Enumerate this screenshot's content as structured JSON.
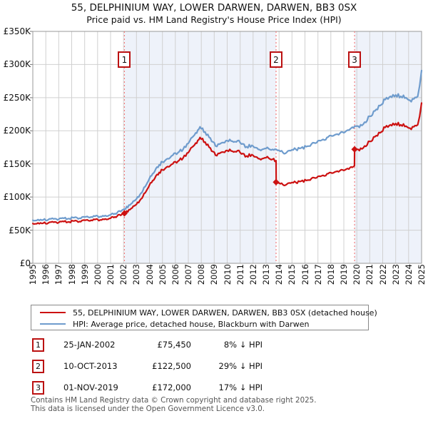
{
  "title": "55, DELPHINIUM WAY, LOWER DARWEN, DARWEN, BB3 0SX",
  "subtitle": "Price paid vs. HM Land Registry's House Price Index (HPI)",
  "footer": {
    "line1": "Contains HM Land Registry data © Crown copyright and database right 2025.",
    "line2": "This data is licensed under the Open Government Licence v3.0."
  },
  "chart_data": {
    "type": "line",
    "x_domain": [
      1995,
      2025
    ],
    "ylim_k": [
      0,
      350
    ],
    "x_ticks": [
      1995,
      1996,
      1997,
      1998,
      1999,
      2000,
      2001,
      2002,
      2003,
      2004,
      2005,
      2006,
      2007,
      2008,
      2009,
      2010,
      2011,
      2012,
      2013,
      2014,
      2015,
      2016,
      2017,
      2018,
      2019,
      2020,
      2021,
      2022,
      2023,
      2024,
      2025
    ],
    "y_ticks": [
      {
        "v": 0,
        "label": "£0"
      },
      {
        "v": 50,
        "label": "£50K"
      },
      {
        "v": 100,
        "label": "£100K"
      },
      {
        "v": 150,
        "label": "£150K"
      },
      {
        "v": 200,
        "label": "£200K"
      },
      {
        "v": 250,
        "label": "£250K"
      },
      {
        "v": 300,
        "label": "£300K"
      },
      {
        "v": 350,
        "label": "£350K"
      }
    ],
    "colors": {
      "property": "#cc1111",
      "hpi": "#6f9ccd",
      "band": "#eef2fa",
      "grid": "#d0d0d0",
      "border": "#999999",
      "sale_line": "#f37c7c",
      "sale_box_border": "#bb1111"
    },
    "bands": [
      [
        2002.07,
        2013.77
      ],
      [
        2019.83,
        2025
      ]
    ],
    "wiggle": {
      "base": 0.8,
      "scale": 0.009
    },
    "series": [
      {
        "name": "55, DELPHINIUM WAY, LOWER DARWEN, DARWEN, BB3 0SX (detached house)",
        "color_key": "property",
        "points": [
          [
            1995.0,
            60
          ],
          [
            1995.4,
            61
          ],
          [
            1995.8,
            60.5
          ],
          [
            1996.2,
            61
          ],
          [
            1996.6,
            62
          ],
          [
            1997.0,
            61.5
          ],
          [
            1997.4,
            63
          ],
          [
            1997.8,
            62.5
          ],
          [
            1998.2,
            64
          ],
          [
            1998.6,
            63
          ],
          [
            1999.0,
            65
          ],
          [
            1999.4,
            64
          ],
          [
            1999.8,
            66
          ],
          [
            2000.2,
            65.5
          ],
          [
            2000.6,
            67
          ],
          [
            2001.0,
            68
          ],
          [
            2001.5,
            71
          ],
          [
            2002.07,
            75.45
          ],
          [
            2002.5,
            81
          ],
          [
            2003.0,
            89
          ],
          [
            2003.5,
            101
          ],
          [
            2004.0,
            118
          ],
          [
            2004.5,
            132
          ],
          [
            2005.0,
            141
          ],
          [
            2005.4,
            146
          ],
          [
            2005.8,
            150
          ],
          [
            2006.2,
            154
          ],
          [
            2006.6,
            159
          ],
          [
            2007.0,
            167
          ],
          [
            2007.4,
            177
          ],
          [
            2007.9,
            190
          ],
          [
            2008.3,
            183
          ],
          [
            2008.7,
            174
          ],
          [
            2009.1,
            163
          ],
          [
            2009.5,
            167
          ],
          [
            2009.9,
            170
          ],
          [
            2010.2,
            172
          ],
          [
            2010.5,
            168
          ],
          [
            2010.8,
            170
          ],
          [
            2011.1,
            165
          ],
          [
            2011.5,
            162
          ],
          [
            2011.9,
            164
          ],
          [
            2012.3,
            160
          ],
          [
            2012.7,
            158
          ],
          [
            2013.1,
            161
          ],
          [
            2013.5,
            157
          ],
          [
            2013.77,
            155
          ],
          [
            2013.78,
            122.5
          ],
          [
            2014.1,
            120
          ],
          [
            2014.5,
            118
          ],
          [
            2014.9,
            121
          ],
          [
            2015.3,
            122
          ],
          [
            2015.7,
            124
          ],
          [
            2016.1,
            125
          ],
          [
            2016.5,
            128
          ],
          [
            2016.9,
            129
          ],
          [
            2017.3,
            132
          ],
          [
            2017.7,
            135
          ],
          [
            2018.1,
            136
          ],
          [
            2018.5,
            139
          ],
          [
            2018.9,
            141
          ],
          [
            2019.3,
            143
          ],
          [
            2019.82,
            147
          ],
          [
            2019.83,
            172
          ],
          [
            2020.2,
            170
          ],
          [
            2020.6,
            177
          ],
          [
            2021.0,
            184
          ],
          [
            2021.4,
            191
          ],
          [
            2021.8,
            197
          ],
          [
            2022.2,
            205
          ],
          [
            2022.6,
            209
          ],
          [
            2023.0,
            211
          ],
          [
            2023.4,
            209
          ],
          [
            2023.8,
            207
          ],
          [
            2024.1,
            204
          ],
          [
            2024.4,
            206
          ],
          [
            2024.7,
            209
          ],
          [
            2024.85,
            222
          ],
          [
            2025.0,
            242
          ]
        ]
      },
      {
        "name": "HPI: Average price, detached house, Blackburn with Darwen",
        "color_key": "hpi",
        "points": [
          [
            1995.0,
            65
          ],
          [
            1995.4,
            66
          ],
          [
            1995.8,
            65.5
          ],
          [
            1996.2,
            66
          ],
          [
            1996.6,
            67
          ],
          [
            1997.0,
            66.5
          ],
          [
            1997.4,
            68
          ],
          [
            1997.8,
            67.5
          ],
          [
            1998.2,
            69
          ],
          [
            1998.6,
            68
          ],
          [
            1999.0,
            70
          ],
          [
            1999.4,
            69
          ],
          [
            1999.8,
            71
          ],
          [
            2000.2,
            70.5
          ],
          [
            2000.6,
            72
          ],
          [
            2001.0,
            73
          ],
          [
            2001.5,
            76
          ],
          [
            2002.07,
            82
          ],
          [
            2002.5,
            88
          ],
          [
            2003.0,
            97
          ],
          [
            2003.5,
            110
          ],
          [
            2004.0,
            128
          ],
          [
            2004.5,
            143
          ],
          [
            2005.0,
            153
          ],
          [
            2005.4,
            158
          ],
          [
            2005.8,
            163
          ],
          [
            2006.2,
            167
          ],
          [
            2006.6,
            172
          ],
          [
            2007.0,
            181
          ],
          [
            2007.4,
            192
          ],
          [
            2007.9,
            206
          ],
          [
            2008.3,
            198
          ],
          [
            2008.7,
            189
          ],
          [
            2009.1,
            177
          ],
          [
            2009.5,
            181
          ],
          [
            2009.9,
            185
          ],
          [
            2010.2,
            187
          ],
          [
            2010.5,
            183
          ],
          [
            2010.8,
            185
          ],
          [
            2011.1,
            180
          ],
          [
            2011.5,
            176
          ],
          [
            2011.9,
            178
          ],
          [
            2012.3,
            174
          ],
          [
            2012.7,
            172
          ],
          [
            2013.1,
            175
          ],
          [
            2013.5,
            172
          ],
          [
            2013.78,
            172
          ],
          [
            2014.1,
            169
          ],
          [
            2014.5,
            166
          ],
          [
            2014.9,
            170
          ],
          [
            2015.3,
            172
          ],
          [
            2015.7,
            174
          ],
          [
            2016.1,
            176
          ],
          [
            2016.5,
            180
          ],
          [
            2016.9,
            182
          ],
          [
            2017.3,
            186
          ],
          [
            2017.7,
            190
          ],
          [
            2018.1,
            192
          ],
          [
            2018.5,
            195
          ],
          [
            2018.9,
            198
          ],
          [
            2019.3,
            201
          ],
          [
            2019.83,
            207
          ],
          [
            2020.2,
            205
          ],
          [
            2020.6,
            213
          ],
          [
            2021.0,
            222
          ],
          [
            2021.4,
            230
          ],
          [
            2021.8,
            238
          ],
          [
            2022.2,
            247
          ],
          [
            2022.6,
            252
          ],
          [
            2023.0,
            254
          ],
          [
            2023.4,
            252
          ],
          [
            2023.8,
            250
          ],
          [
            2024.1,
            246
          ],
          [
            2024.4,
            248
          ],
          [
            2024.7,
            252
          ],
          [
            2024.85,
            268
          ],
          [
            2025.0,
            291
          ]
        ]
      }
    ],
    "sales": [
      {
        "n": "1",
        "date": "25-JAN-2002",
        "price": "£75,450",
        "pct": "8% ↓ HPI",
        "year": 2002.07,
        "value_k": 75.45
      },
      {
        "n": "2",
        "date": "10-OCT-2013",
        "price": "£122,500",
        "pct": "29% ↓ HPI",
        "year": 2013.77,
        "value_k": 122.5
      },
      {
        "n": "3",
        "date": "01-NOV-2019",
        "price": "£172,000",
        "pct": "17% ↓ HPI",
        "year": 2019.83,
        "value_k": 172
      }
    ]
  }
}
